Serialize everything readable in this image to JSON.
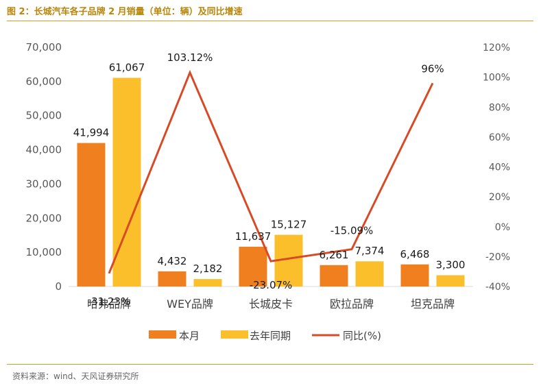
{
  "figure": {
    "title": "图 2：长城汽车各子品牌 2 月销量（单位：辆）及同比增速",
    "source": "资料来源：wind、天风证券研究所"
  },
  "colors": {
    "current": "#f0801f",
    "last_year": "#fbbf2b",
    "yoy": "#d84a26"
  },
  "chart_data": {
    "type": "bar",
    "categories": [
      "哈弗品牌",
      "WEY品牌",
      "长城皮卡",
      "欧拉品牌",
      "坦克品牌"
    ],
    "series": [
      {
        "name": "本月",
        "type": "bar",
        "axis": "left",
        "values": [
          41994,
          4432,
          11637,
          6261,
          6468
        ],
        "labels": [
          "41,994",
          "4,432",
          "11,637",
          "6,261",
          "6,468"
        ]
      },
      {
        "name": "去年同期",
        "type": "bar",
        "axis": "left",
        "values": [
          61067,
          2182,
          15127,
          7374,
          3300
        ],
        "labels": [
          "61,067",
          "2,182",
          "15,127",
          "7,374",
          "3,300"
        ]
      },
      {
        "name": "同比(%)",
        "type": "line",
        "axis": "right",
        "values": [
          -31.23,
          103.12,
          -23.07,
          -15.09,
          96
        ],
        "labels": [
          "-31.23%",
          "103.12%",
          "-23.07%",
          "-15.09%",
          "96%"
        ]
      }
    ],
    "ylim_left": [
      0,
      70000
    ],
    "yticks_left": [
      0,
      10000,
      20000,
      30000,
      40000,
      50000,
      60000,
      70000
    ],
    "ytick_labels_left": [
      "0",
      "10,000",
      "20,000",
      "30,000",
      "40,000",
      "50,000",
      "60,000",
      "70,000"
    ],
    "ylim_right": [
      -40,
      120
    ],
    "yticks_right": [
      -40,
      -20,
      0,
      20,
      40,
      60,
      80,
      100,
      120
    ],
    "ytick_labels_right": [
      "-40%",
      "-20%",
      "0%",
      "20%",
      "40%",
      "60%",
      "80%",
      "100%",
      "120%"
    ],
    "legend": {
      "position": "bottom",
      "entries": [
        "本月",
        "去年同期",
        "同比(%)"
      ]
    },
    "grid": false
  }
}
